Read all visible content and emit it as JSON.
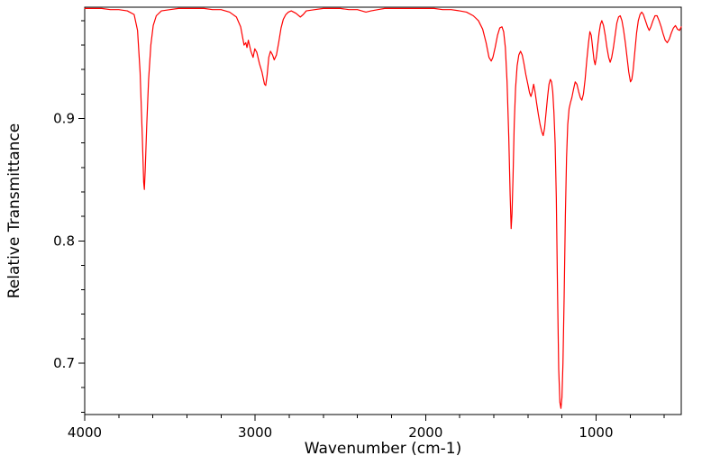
{
  "chart_data": {
    "type": "line",
    "title": "",
    "xlabel": "Wavenumber (cm-1)",
    "ylabel": "Relative Transmittance",
    "xlim": [
      4000,
      500
    ],
    "x_reversed": true,
    "ylim": [
      0.658,
      0.991
    ],
    "xticks": [
      4000,
      3000,
      2000,
      1000
    ],
    "xtick_labels": [
      "4000",
      "3000",
      "2000",
      "1000"
    ],
    "yticks": [
      0.7,
      0.8,
      0.9
    ],
    "ytick_labels": [
      "0.7",
      "0.8",
      "0.9"
    ],
    "x_minor_step": 200,
    "y_minor_step": 0.02,
    "grid": false,
    "legend": "none",
    "line_color": "#ff0000",
    "axis_color": "#000000",
    "background": "#ffffff",
    "series": [
      {
        "name": "IR spectrum",
        "points": [
          [
            4000,
            0.99
          ],
          [
            3950,
            0.99
          ],
          [
            3900,
            0.99
          ],
          [
            3850,
            0.989
          ],
          [
            3800,
            0.989
          ],
          [
            3750,
            0.988
          ],
          [
            3710,
            0.985
          ],
          [
            3690,
            0.972
          ],
          [
            3675,
            0.938
          ],
          [
            3662,
            0.885
          ],
          [
            3654,
            0.848
          ],
          [
            3650,
            0.842
          ],
          [
            3645,
            0.858
          ],
          [
            3636,
            0.895
          ],
          [
            3625,
            0.932
          ],
          [
            3612,
            0.96
          ],
          [
            3598,
            0.976
          ],
          [
            3580,
            0.984
          ],
          [
            3550,
            0.988
          ],
          [
            3500,
            0.989
          ],
          [
            3450,
            0.99
          ],
          [
            3400,
            0.99
          ],
          [
            3350,
            0.99
          ],
          [
            3300,
            0.99
          ],
          [
            3250,
            0.989
          ],
          [
            3200,
            0.989
          ],
          [
            3150,
            0.987
          ],
          [
            3110,
            0.983
          ],
          [
            3085,
            0.975
          ],
          [
            3065,
            0.96
          ],
          [
            3055,
            0.962
          ],
          [
            3048,
            0.958
          ],
          [
            3040,
            0.964
          ],
          [
            3025,
            0.955
          ],
          [
            3012,
            0.95
          ],
          [
            3002,
            0.957
          ],
          [
            2990,
            0.954
          ],
          [
            2975,
            0.945
          ],
          [
            2960,
            0.938
          ],
          [
            2945,
            0.928
          ],
          [
            2938,
            0.927
          ],
          [
            2930,
            0.935
          ],
          [
            2920,
            0.95
          ],
          [
            2910,
            0.955
          ],
          [
            2898,
            0.952
          ],
          [
            2888,
            0.948
          ],
          [
            2875,
            0.952
          ],
          [
            2862,
            0.962
          ],
          [
            2848,
            0.974
          ],
          [
            2835,
            0.981
          ],
          [
            2820,
            0.985
          ],
          [
            2805,
            0.987
          ],
          [
            2788,
            0.988
          ],
          [
            2760,
            0.986
          ],
          [
            2735,
            0.983
          ],
          [
            2718,
            0.985
          ],
          [
            2700,
            0.988
          ],
          [
            2650,
            0.989
          ],
          [
            2600,
            0.99
          ],
          [
            2550,
            0.99
          ],
          [
            2500,
            0.99
          ],
          [
            2450,
            0.989
          ],
          [
            2400,
            0.989
          ],
          [
            2350,
            0.987
          ],
          [
            2320,
            0.988
          ],
          [
            2280,
            0.989
          ],
          [
            2240,
            0.99
          ],
          [
            2200,
            0.99
          ],
          [
            2150,
            0.99
          ],
          [
            2100,
            0.99
          ],
          [
            2050,
            0.99
          ],
          [
            2000,
            0.99
          ],
          [
            1950,
            0.99
          ],
          [
            1900,
            0.989
          ],
          [
            1850,
            0.989
          ],
          [
            1800,
            0.988
          ],
          [
            1760,
            0.987
          ],
          [
            1720,
            0.984
          ],
          [
            1690,
            0.98
          ],
          [
            1665,
            0.973
          ],
          [
            1645,
            0.962
          ],
          [
            1628,
            0.95
          ],
          [
            1615,
            0.947
          ],
          [
            1605,
            0.95
          ],
          [
            1592,
            0.958
          ],
          [
            1578,
            0.968
          ],
          [
            1565,
            0.974
          ],
          [
            1552,
            0.975
          ],
          [
            1542,
            0.971
          ],
          [
            1532,
            0.958
          ],
          [
            1522,
            0.93
          ],
          [
            1512,
            0.885
          ],
          [
            1504,
            0.838
          ],
          [
            1498,
            0.81
          ],
          [
            1493,
            0.822
          ],
          [
            1487,
            0.852
          ],
          [
            1480,
            0.895
          ],
          [
            1472,
            0.925
          ],
          [
            1463,
            0.943
          ],
          [
            1453,
            0.952
          ],
          [
            1443,
            0.955
          ],
          [
            1433,
            0.952
          ],
          [
            1423,
            0.945
          ],
          [
            1412,
            0.936
          ],
          [
            1400,
            0.928
          ],
          [
            1390,
            0.921
          ],
          [
            1382,
            0.918
          ],
          [
            1374,
            0.922
          ],
          [
            1366,
            0.928
          ],
          [
            1358,
            0.922
          ],
          [
            1348,
            0.912
          ],
          [
            1338,
            0.903
          ],
          [
            1328,
            0.895
          ],
          [
            1318,
            0.889
          ],
          [
            1310,
            0.886
          ],
          [
            1302,
            0.892
          ],
          [
            1293,
            0.905
          ],
          [
            1284,
            0.918
          ],
          [
            1276,
            0.928
          ],
          [
            1268,
            0.932
          ],
          [
            1261,
            0.93
          ],
          [
            1254,
            0.922
          ],
          [
            1247,
            0.905
          ],
          [
            1240,
            0.88
          ],
          [
            1233,
            0.835
          ],
          [
            1226,
            0.76
          ],
          [
            1219,
            0.695
          ],
          [
            1212,
            0.668
          ],
          [
            1206,
            0.663
          ],
          [
            1200,
            0.672
          ],
          [
            1194,
            0.7
          ],
          [
            1187,
            0.755
          ],
          [
            1180,
            0.82
          ],
          [
            1173,
            0.868
          ],
          [
            1166,
            0.895
          ],
          [
            1158,
            0.908
          ],
          [
            1150,
            0.913
          ],
          [
            1142,
            0.917
          ],
          [
            1132,
            0.924
          ],
          [
            1122,
            0.93
          ],
          [
            1112,
            0.928
          ],
          [
            1102,
            0.922
          ],
          [
            1092,
            0.917
          ],
          [
            1083,
            0.915
          ],
          [
            1074,
            0.92
          ],
          [
            1064,
            0.932
          ],
          [
            1054,
            0.948
          ],
          [
            1044,
            0.962
          ],
          [
            1036,
            0.971
          ],
          [
            1028,
            0.968
          ],
          [
            1020,
            0.958
          ],
          [
            1012,
            0.948
          ],
          [
            1005,
            0.944
          ],
          [
            998,
            0.95
          ],
          [
            990,
            0.96
          ],
          [
            982,
            0.97
          ],
          [
            974,
            0.977
          ],
          [
            966,
            0.98
          ],
          [
            956,
            0.976
          ],
          [
            946,
            0.968
          ],
          [
            936,
            0.958
          ],
          [
            926,
            0.95
          ],
          [
            917,
            0.946
          ],
          [
            908,
            0.95
          ],
          [
            898,
            0.958
          ],
          [
            888,
            0.968
          ],
          [
            878,
            0.978
          ],
          [
            868,
            0.983
          ],
          [
            858,
            0.984
          ],
          [
            848,
            0.98
          ],
          [
            838,
            0.972
          ],
          [
            828,
            0.962
          ],
          [
            818,
            0.95
          ],
          [
            808,
            0.938
          ],
          [
            798,
            0.93
          ],
          [
            790,
            0.932
          ],
          [
            782,
            0.94
          ],
          [
            772,
            0.955
          ],
          [
            762,
            0.97
          ],
          [
            752,
            0.98
          ],
          [
            742,
            0.985
          ],
          [
            732,
            0.987
          ],
          [
            722,
            0.985
          ],
          [
            710,
            0.98
          ],
          [
            698,
            0.975
          ],
          [
            688,
            0.972
          ],
          [
            678,
            0.975
          ],
          [
            666,
            0.98
          ],
          [
            654,
            0.984
          ],
          [
            642,
            0.984
          ],
          [
            630,
            0.98
          ],
          [
            618,
            0.975
          ],
          [
            606,
            0.969
          ],
          [
            594,
            0.964
          ],
          [
            582,
            0.962
          ],
          [
            570,
            0.965
          ],
          [
            558,
            0.97
          ],
          [
            546,
            0.974
          ],
          [
            534,
            0.976
          ],
          [
            522,
            0.973
          ],
          [
            510,
            0.972
          ],
          [
            500,
            0.975
          ]
        ]
      }
    ]
  }
}
